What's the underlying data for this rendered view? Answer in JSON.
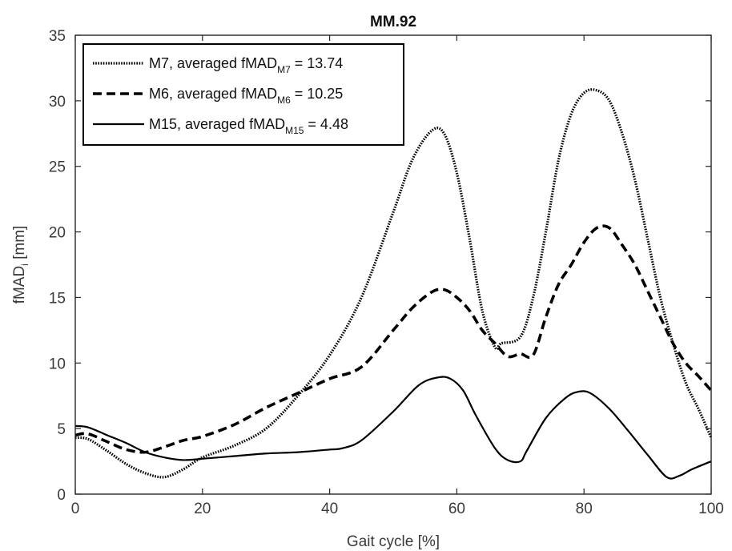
{
  "chart_data": {
    "type": "line",
    "title": "MM.92",
    "xlabel": "Gait cycle [%]",
    "ylabel_main": "fMAD",
    "ylabel_sub": "i",
    "ylabel_unit": " [mm]",
    "xlim": [
      0,
      100
    ],
    "ylim": [
      0,
      35
    ],
    "xticks": [
      0,
      20,
      40,
      60,
      80,
      100
    ],
    "yticks": [
      0,
      5,
      10,
      15,
      20,
      25,
      30,
      35
    ],
    "grid": false,
    "legend_position": "top-left",
    "series": [
      {
        "name": "M7",
        "legend_prefix": "M7, averaged fMAD",
        "legend_sub": "M7",
        "legend_suffix": " = 13.74",
        "style": "dotted",
        "x": [
          0,
          2,
          5,
          8,
          11,
          14,
          17,
          20,
          25,
          30,
          35,
          40,
          45,
          50,
          53,
          56,
          58,
          60,
          62,
          64,
          66,
          67,
          70,
          72,
          74,
          76,
          78,
          80,
          82,
          84,
          86,
          88,
          90,
          92,
          94,
          96,
          98,
          100
        ],
        "y": [
          4.3,
          4.2,
          3.3,
          2.3,
          1.6,
          1.3,
          1.9,
          2.8,
          3.7,
          5.0,
          7.5,
          10.6,
          15.0,
          21.5,
          25.5,
          27.7,
          27.5,
          24.5,
          19.5,
          14.0,
          11.2,
          11.5,
          12.0,
          15.0,
          20.0,
          25.5,
          29.0,
          30.6,
          30.8,
          30.0,
          27.5,
          24.0,
          19.5,
          15.0,
          11.5,
          8.5,
          6.5,
          4.3
        ]
      },
      {
        "name": "M6",
        "legend_prefix": "M6, averaged fMAD",
        "legend_sub": "M6",
        "legend_suffix": " = 10.25",
        "style": "dashed",
        "x": [
          0,
          2,
          5,
          8,
          11,
          14,
          17,
          20,
          25,
          30,
          35,
          40,
          45,
          50,
          53,
          56,
          58,
          60,
          62,
          64,
          66,
          68,
          70,
          72,
          74,
          76,
          78,
          80,
          82,
          84,
          86,
          88,
          90,
          92,
          94,
          96,
          98,
          100
        ],
        "y": [
          4.5,
          4.6,
          4.0,
          3.4,
          3.2,
          3.6,
          4.1,
          4.4,
          5.3,
          6.6,
          7.7,
          8.8,
          9.7,
          12.5,
          14.2,
          15.4,
          15.6,
          15.0,
          14.0,
          12.5,
          11.5,
          10.5,
          10.7,
          10.6,
          13.5,
          16.0,
          17.5,
          19.2,
          20.3,
          20.3,
          19.0,
          17.5,
          15.5,
          13.5,
          11.5,
          10.0,
          9.0,
          7.9
        ]
      },
      {
        "name": "M15",
        "legend_prefix": "M15, averaged fMAD",
        "legend_sub": "M15",
        "legend_suffix": " = 4.48",
        "style": "solid",
        "x": [
          0,
          2,
          5,
          8,
          11,
          14,
          17,
          20,
          25,
          30,
          35,
          40,
          42,
          45,
          50,
          54,
          57,
          59,
          61,
          63,
          66,
          68,
          70,
          71,
          74,
          77,
          79,
          81,
          84,
          87,
          90,
          93,
          95,
          97,
          100
        ],
        "y": [
          5.2,
          5.1,
          4.5,
          3.9,
          3.2,
          2.8,
          2.6,
          2.7,
          2.9,
          3.1,
          3.2,
          3.4,
          3.5,
          4.1,
          6.3,
          8.3,
          8.9,
          8.8,
          7.9,
          6.0,
          3.5,
          2.6,
          2.5,
          3.3,
          5.8,
          7.3,
          7.8,
          7.7,
          6.5,
          4.8,
          3.0,
          1.3,
          1.4,
          1.9,
          2.5
        ]
      }
    ]
  }
}
